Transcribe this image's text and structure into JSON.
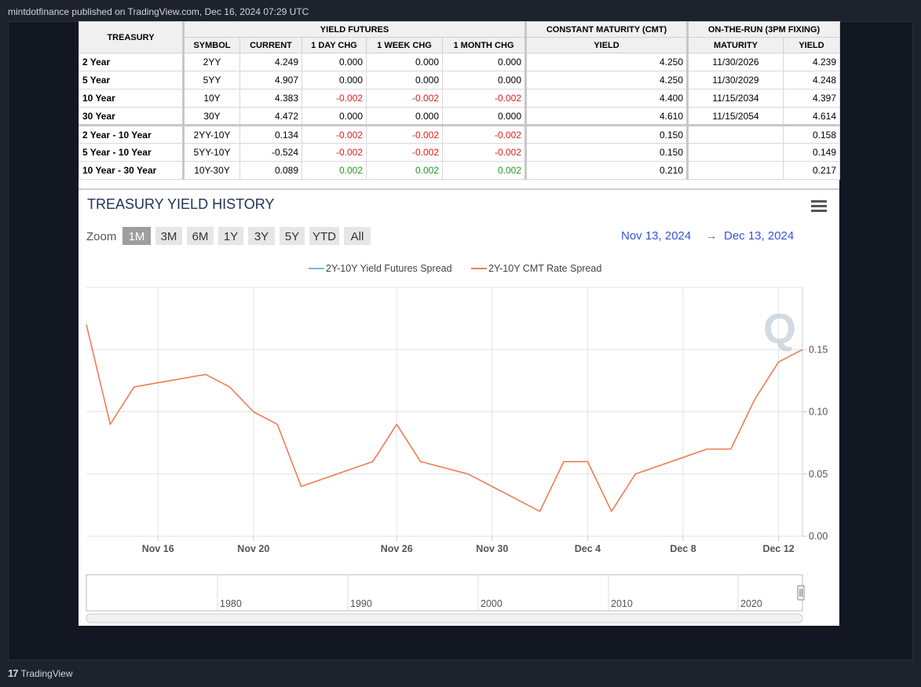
{
  "publisher_line": "mintdotfinance published on TradingView.com, Dec 16, 2024 07:29 UTC",
  "footer": {
    "brand": "TradingView",
    "logo_mark": "17"
  },
  "table": {
    "headers": {
      "treasury": "TREASURY",
      "yield_futures": "YIELD FUTURES",
      "cmt": "CONSTANT MATURITY (CMT)",
      "otr": "ON-THE-RUN (3PM FIXING)",
      "symbol": "SYMBOL",
      "current": "CURRENT",
      "day": "1 DAY CHG",
      "week": "1 WEEK CHG",
      "month": "1 MONTH CHG",
      "yield": "YIELD",
      "maturity": "MATURITY",
      "otr_yield": "YIELD"
    },
    "rows": [
      {
        "label": "2 Year",
        "symbol": "2YY",
        "current": "4.249",
        "day": "0.000",
        "week": "0.000",
        "month": "0.000",
        "cmt": "4.250",
        "maturity": "11/30/2026",
        "otr": "4.239"
      },
      {
        "label": "5 Year",
        "symbol": "5YY",
        "current": "4.907",
        "day": "0.000",
        "week": "0.000",
        "month": "0.000",
        "cmt": "4.250",
        "maturity": "11/30/2029",
        "otr": "4.248"
      },
      {
        "label": "10 Year",
        "symbol": "10Y",
        "current": "4.383",
        "day": "-0.002",
        "week": "-0.002",
        "month": "-0.002",
        "cmt": "4.400",
        "maturity": "11/15/2034",
        "otr": "4.397"
      },
      {
        "label": "30 Year",
        "symbol": "30Y",
        "current": "4.472",
        "day": "0.000",
        "week": "0.000",
        "month": "0.000",
        "cmt": "4.610",
        "maturity": "11/15/2054",
        "otr": "4.614"
      },
      {
        "label": "2 Year - 10 Year",
        "symbol": "2YY-10Y",
        "current": "0.134",
        "day": "-0.002",
        "week": "-0.002",
        "month": "-0.002",
        "cmt": "0.150",
        "maturity": "",
        "otr": "0.158"
      },
      {
        "label": "5 Year - 10 Year",
        "symbol": "5YY-10Y",
        "current": "-0.524",
        "day": "-0.002",
        "week": "-0.002",
        "month": "-0.002",
        "cmt": "0.150",
        "maturity": "",
        "otr": "0.149"
      },
      {
        "label": "10 Year - 30 Year",
        "symbol": "10Y-30Y",
        "current": "0.089",
        "day": "0.002",
        "week": "0.002",
        "month": "0.002",
        "cmt": "0.210",
        "maturity": "",
        "otr": "0.217"
      }
    ],
    "colors": {
      "negative": "#e01e1e",
      "positive": "#1e9e1e"
    }
  },
  "chart_data": {
    "type": "line",
    "title": "TREASURY YIELD HISTORY",
    "zoom": {
      "label": "Zoom",
      "options": [
        "1M",
        "3M",
        "6M",
        "1Y",
        "3Y",
        "5Y",
        "YTD",
        "All"
      ],
      "selected": "1M"
    },
    "range": {
      "from": "Nov 13, 2024",
      "arrow": "→",
      "to": "Dec 13, 2024"
    },
    "legend_position": "top-center",
    "grid": true,
    "xlabel": "",
    "ylabel": "",
    "ylim": [
      0,
      0.2
    ],
    "yticks": [
      "0.00",
      "0.05",
      "0.10",
      "0.15"
    ],
    "xlim": [
      "2024-11-13",
      "2024-12-13"
    ],
    "xticks": [
      {
        "date": "2024-11-16",
        "label": "Nov 16"
      },
      {
        "date": "2024-11-20",
        "label": "Nov 20"
      },
      {
        "date": "2024-11-26",
        "label": "Nov 26"
      },
      {
        "date": "2024-11-30",
        "label": "Nov 30"
      },
      {
        "date": "2024-12-04",
        "label": "Dec 4"
      },
      {
        "date": "2024-12-08",
        "label": "Dec 8"
      },
      {
        "date": "2024-12-12",
        "label": "Dec 12"
      }
    ],
    "series": [
      {
        "name": "2Y-10Y Yield Futures Spread",
        "color": "#7cb5ec",
        "x": [],
        "y": []
      },
      {
        "name": "2Y-10Y CMT Rate Spread",
        "color": "#f07c56",
        "x": [
          "2024-11-13",
          "2024-11-14",
          "2024-11-15",
          "2024-11-18",
          "2024-11-19",
          "2024-11-20",
          "2024-11-21",
          "2024-11-22",
          "2024-11-25",
          "2024-11-26",
          "2024-11-27",
          "2024-11-29",
          "2024-12-02",
          "2024-12-03",
          "2024-12-04",
          "2024-12-05",
          "2024-12-06",
          "2024-12-09",
          "2024-12-10",
          "2024-12-11",
          "2024-12-12",
          "2024-12-13"
        ],
        "y": [
          0.17,
          0.09,
          0.12,
          0.13,
          0.12,
          0.1,
          0.09,
          0.04,
          0.06,
          0.09,
          0.06,
          0.05,
          0.02,
          0.06,
          0.06,
          0.02,
          0.05,
          0.07,
          0.07,
          0.11,
          0.14,
          0.15
        ]
      }
    ],
    "navigator": {
      "labels": [
        "1980",
        "1990",
        "2000",
        "2010",
        "2020"
      ]
    },
    "watermark": "Q"
  }
}
